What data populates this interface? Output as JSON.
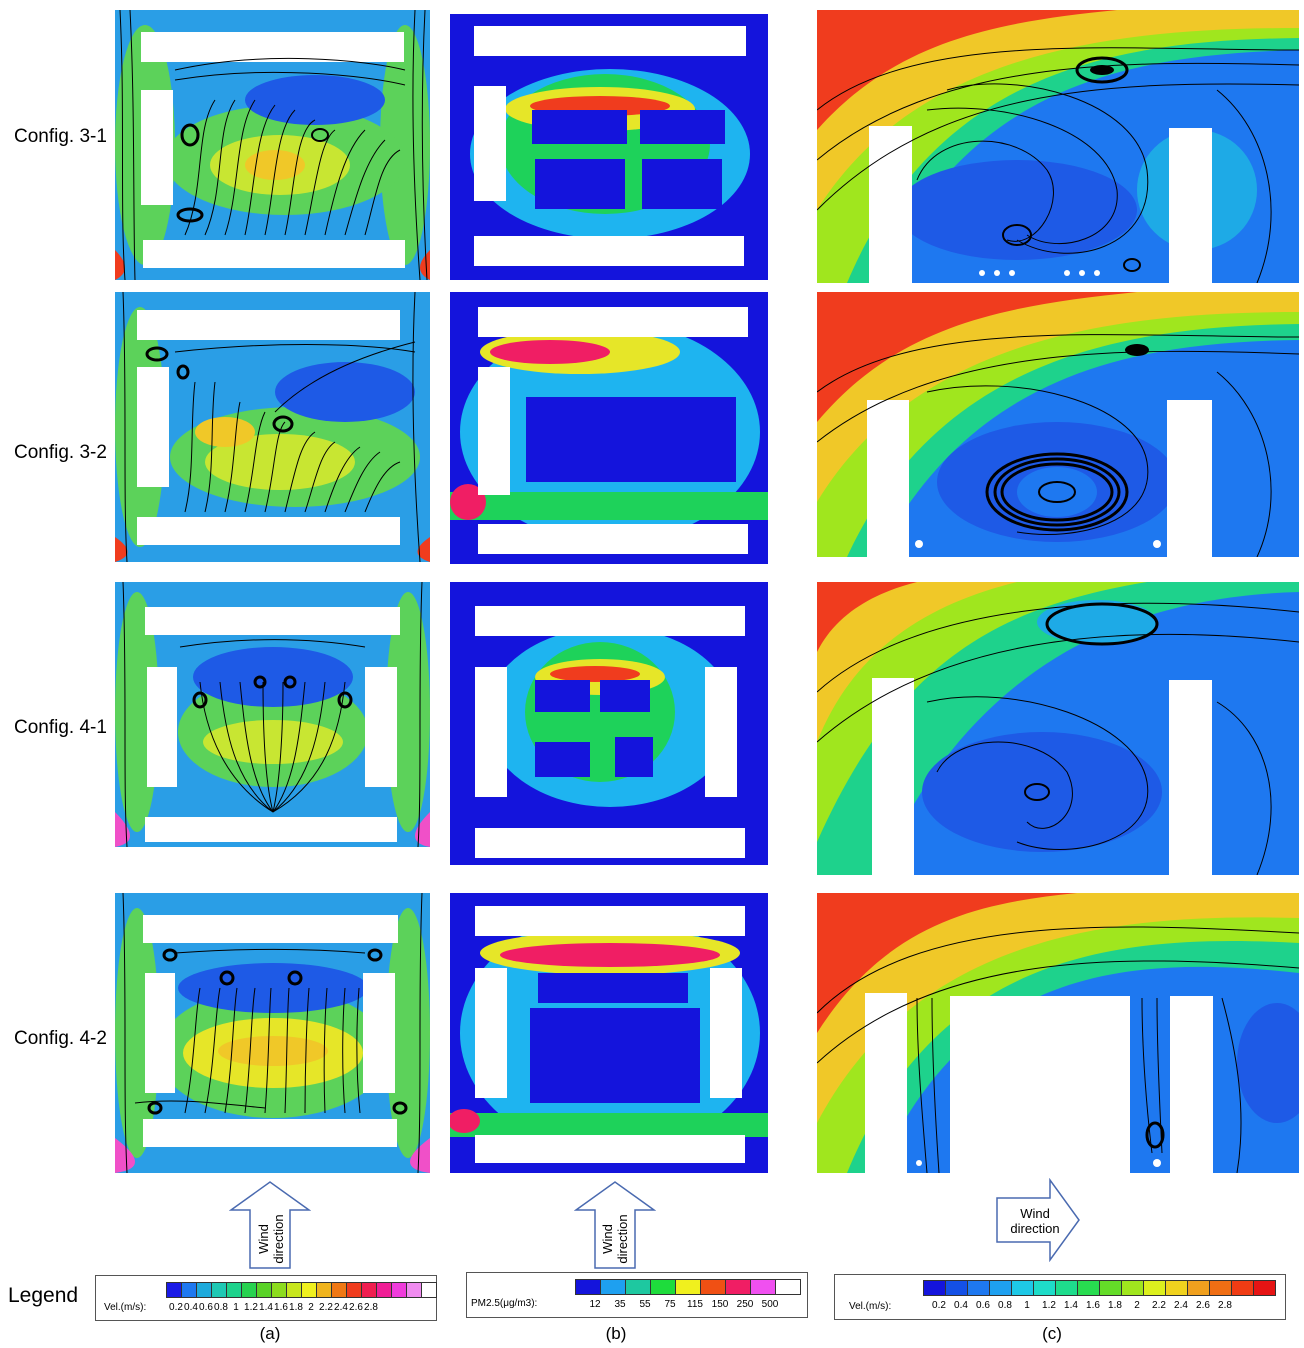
{
  "rows": [
    {
      "label": "Config. 3-1"
    },
    {
      "label": "Config. 3-2"
    },
    {
      "label": "Config. 4-1"
    },
    {
      "label": "Config. 4-2"
    }
  ],
  "wind_arrows": [
    {
      "line1": "Wind",
      "line2": "direction"
    },
    {
      "line1": "Wind",
      "line2": "direction"
    },
    {
      "line1": "Wind",
      "line2": "direction"
    }
  ],
  "legend": {
    "title": "Legend",
    "a": {
      "name": "Vel.(m/s):",
      "ticks": [
        "0.2",
        "0.4",
        "0.6",
        "0.8",
        "1",
        "1.2",
        "1.4",
        "1.6",
        "1.8",
        "2",
        "2.2",
        "2.4",
        "2.6",
        "2.8"
      ],
      "colors": [
        "#1a1ae6",
        "#1e78f0",
        "#1eaadc",
        "#1ec8b4",
        "#1ed28c",
        "#28d250",
        "#5ad228",
        "#8cdc1e",
        "#c8e61e",
        "#f0f01e",
        "#f0b41e",
        "#f07814",
        "#f03c1e",
        "#f01e50",
        "#f01e96",
        "#f03cdc",
        "#f08cf0",
        "#ffffff"
      ]
    },
    "b": {
      "name": "PM2.5(μg/m3):",
      "ticks": [
        "12",
        "35",
        "55",
        "75",
        "115",
        "150",
        "250",
        "500"
      ],
      "colors": [
        "#1414dc",
        "#1ea0f0",
        "#1ec8a0",
        "#1edc3c",
        "#f0f01e",
        "#f05014",
        "#f01e64",
        "#f050f0",
        "#ffffff"
      ]
    },
    "c": {
      "name": "Vel.(m/s):",
      "ticks": [
        "0.2",
        "0.4",
        "0.6",
        "0.8",
        "1",
        "1.2",
        "1.4",
        "1.6",
        "1.8",
        "2",
        "2.2",
        "2.4",
        "2.6",
        "2.8"
      ],
      "colors": [
        "#1414dc",
        "#1450e6",
        "#1e78f0",
        "#1ea0f0",
        "#1ec8e6",
        "#1edcc8",
        "#1edc8c",
        "#28dc50",
        "#64dc28",
        "#a0e61e",
        "#dcf01e",
        "#f0d21e",
        "#f0a01e",
        "#f06e14",
        "#f03c14",
        "#e61414"
      ]
    }
  },
  "subfigure_labels": [
    "(a)",
    "(b)",
    "(c)"
  ],
  "colors": {
    "velocity_low": "#1e6ef0",
    "velocity_mid": "#28d250",
    "velocity_high": "#f03c1e",
    "pm_background": "#1414dc",
    "pm_mid": "#1eb4f0",
    "building": "#ffffff",
    "streamline": "#000000"
  }
}
